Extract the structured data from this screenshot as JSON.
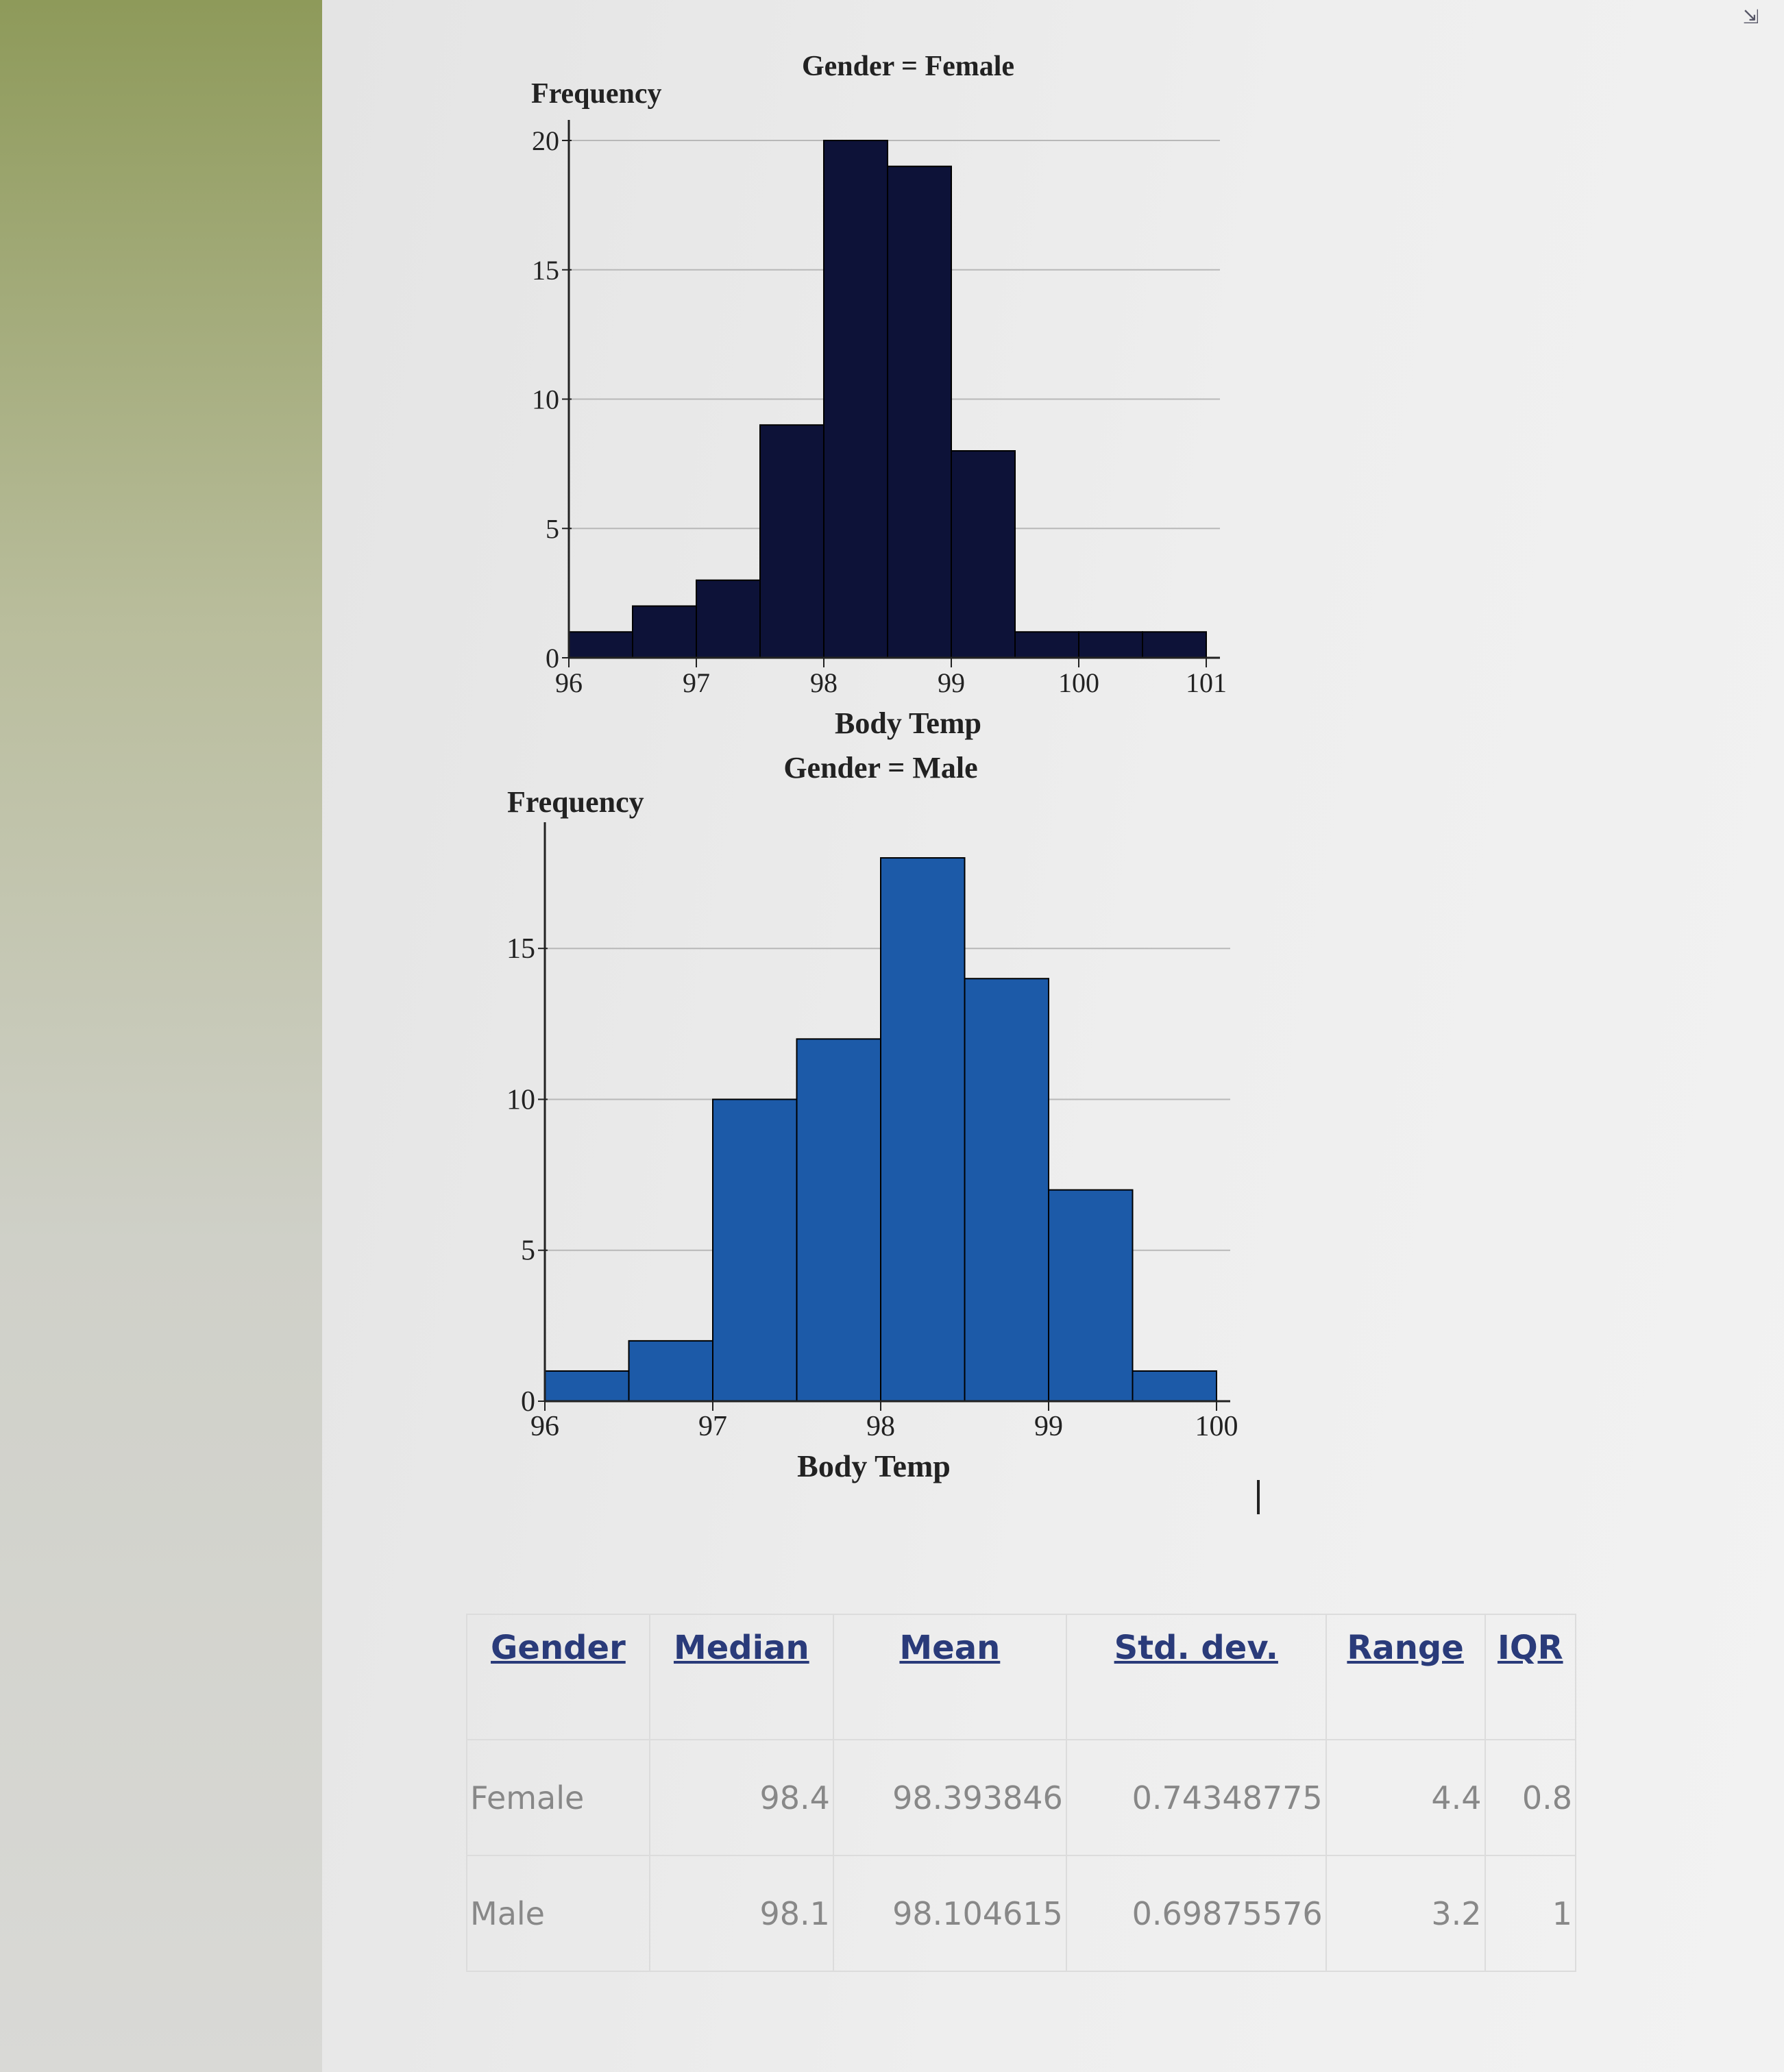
{
  "chart_data": [
    {
      "type": "bar",
      "title": "Gender = Female",
      "xlabel": "Body Temp",
      "ylabel": "Frequency",
      "bin_edges": [
        96,
        96.5,
        97,
        97.5,
        98,
        98.5,
        99,
        99.5,
        100,
        100.5,
        101
      ],
      "values": [
        1,
        2,
        3,
        9,
        20,
        19,
        8,
        1,
        1,
        1
      ],
      "xticks": [
        "96",
        "97",
        "98",
        "99",
        "100",
        "101"
      ],
      "yticks": [
        "0",
        "5",
        "10",
        "15",
        "20"
      ],
      "xlim": [
        96,
        101
      ],
      "ylim": [
        0,
        20
      ],
      "grid": true,
      "bar_color": "#0d1238"
    },
    {
      "type": "bar",
      "title": "Gender = Male",
      "xlabel": "Body Temp",
      "ylabel": "Frequency",
      "bin_edges": [
        96,
        96.5,
        97,
        97.5,
        98,
        98.5,
        99,
        99.5,
        100
      ],
      "values": [
        1,
        2,
        10,
        12,
        18,
        14,
        7,
        1
      ],
      "xticks": [
        "96",
        "97",
        "98",
        "99",
        "100"
      ],
      "yticks": [
        "0",
        "5",
        "10",
        "15"
      ],
      "xlim": [
        96,
        100
      ],
      "ylim": [
        0,
        18.5
      ],
      "grid": true,
      "bar_color": "#1c5aa8"
    }
  ],
  "stats_table": {
    "headers": [
      "Gender",
      "Median",
      "Mean",
      "Std. dev.",
      "Range",
      "IQR"
    ],
    "rows": [
      [
        "Female",
        "98.4",
        "98.393846",
        "0.74348775",
        "4.4",
        "0.8"
      ],
      [
        "Male",
        "98.1",
        "98.104615",
        "0.69875576",
        "3.2",
        "1"
      ]
    ]
  },
  "header_color": "#2a3b7a"
}
